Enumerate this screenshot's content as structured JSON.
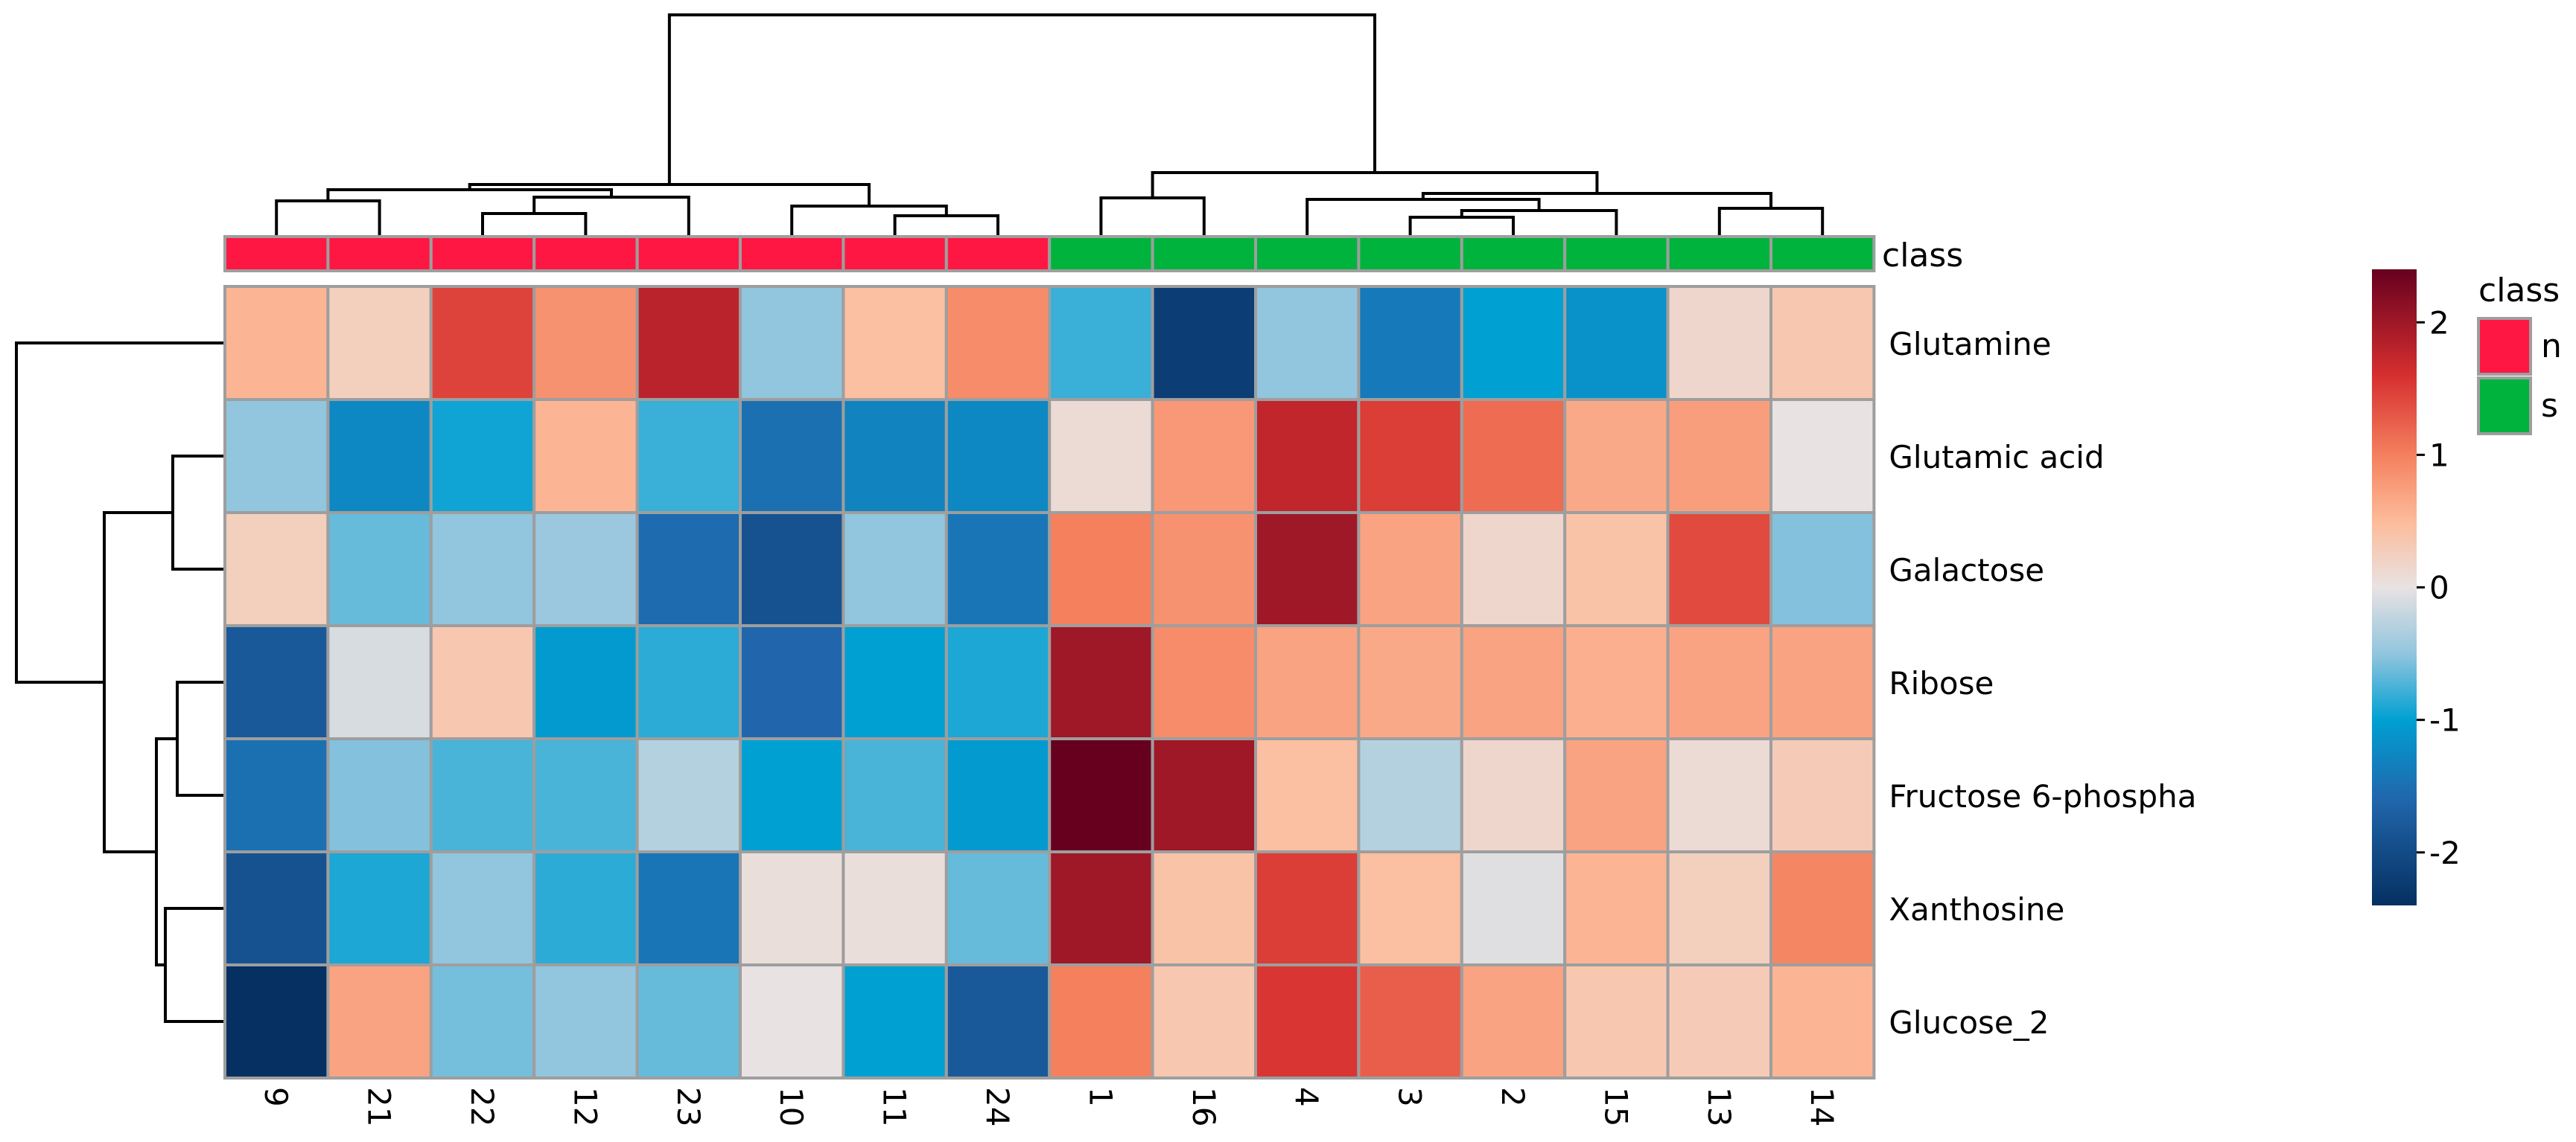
{
  "chart_data": {
    "type": "heatmap",
    "rows": [
      "Glutamine",
      "Glutamic acid",
      "Galactose",
      "Ribose",
      "Fructose 6-phospha",
      "Xanthosine",
      "Glucose_2"
    ],
    "columns": [
      "9",
      "21",
      "22",
      "12",
      "23",
      "10",
      "11",
      "24",
      "1",
      "16",
      "4",
      "3",
      "2",
      "15",
      "13",
      "14"
    ],
    "column_classes": [
      "n",
      "n",
      "n",
      "n",
      "n",
      "n",
      "n",
      "n",
      "s",
      "s",
      "s",
      "s",
      "s",
      "s",
      "s",
      "s"
    ],
    "values": [
      [
        0.55,
        0.25,
        1.45,
        0.85,
        1.8,
        -0.5,
        0.45,
        0.9,
        -0.8,
        -2.2,
        -0.5,
        -1.4,
        -1.0,
        -1.15,
        0.15,
        0.35
      ],
      [
        -0.5,
        -1.25,
        -0.95,
        0.55,
        -0.8,
        -1.5,
        -1.3,
        -1.25,
        0.1,
        0.8,
        1.75,
        1.5,
        1.15,
        0.65,
        0.75,
        0.0
      ],
      [
        0.25,
        -0.65,
        -0.5,
        -0.45,
        -1.55,
        -1.9,
        -0.5,
        -1.45,
        1.0,
        0.85,
        2.0,
        0.7,
        0.15,
        0.4,
        1.4,
        -0.55
      ],
      [
        -1.8,
        -0.1,
        0.35,
        -1.05,
        -0.85,
        -1.6,
        -1.0,
        -0.9,
        2.0,
        0.9,
        0.7,
        0.65,
        0.7,
        0.6,
        0.7,
        0.7
      ],
      [
        -1.5,
        -0.55,
        -0.75,
        -0.75,
        -0.3,
        -1.0,
        -0.75,
        -1.05,
        2.4,
        2.0,
        0.45,
        -0.3,
        0.15,
        0.7,
        0.1,
        0.3
      ],
      [
        -1.9,
        -0.9,
        -0.5,
        -0.85,
        -1.45,
        0.05,
        0.05,
        -0.65,
        2.0,
        0.4,
        1.5,
        0.45,
        -0.05,
        0.55,
        0.25,
        0.95
      ],
      [
        -2.4,
        0.7,
        -0.6,
        -0.5,
        -0.65,
        0.0,
        -1.0,
        -1.8,
        1.0,
        0.35,
        1.55,
        1.25,
        0.7,
        0.35,
        0.3,
        0.55
      ]
    ],
    "class_annotation_label": "class",
    "class_colors": {
      "n": "#ff1744",
      "s": "#00b33c"
    },
    "color_scale": {
      "min": -2.4,
      "max": 2.4,
      "stops": [
        {
          "value": -2.4,
          "color": "#053061"
        },
        {
          "value": -1.6,
          "color": "#2166ac"
        },
        {
          "value": -1.0,
          "color": "#00a0d2"
        },
        {
          "value": -0.5,
          "color": "#92c5de"
        },
        {
          "value": 0.0,
          "color": "#e8e2e2"
        },
        {
          "value": 0.5,
          "color": "#fdbb9a"
        },
        {
          "value": 1.0,
          "color": "#f4805e"
        },
        {
          "value": 1.6,
          "color": "#d62f2f"
        },
        {
          "value": 2.4,
          "color": "#67001f"
        }
      ],
      "ticks": [
        "2",
        "1",
        "0",
        "-1",
        "-2"
      ]
    },
    "legend": {
      "title": "class",
      "entries": [
        {
          "label": "n",
          "color": "#ff1744"
        },
        {
          "label": "s",
          "color": "#00b33c"
        }
      ]
    },
    "column_dendrogram": {
      "leaf_order": [
        "9",
        "21",
        "22",
        "12",
        "23",
        "10",
        "11",
        "24",
        "1",
        "16",
        "4",
        "3",
        "2",
        "15",
        "13",
        "14"
      ],
      "merges": [
        [
          "9",
          "21",
          0.05
        ],
        [
          "22",
          "12",
          0.12
        ],
        [
          "11",
          "24",
          0.1
        ],
        [
          "10",
          "11+24",
          0.15
        ],
        [
          "22+12",
          "23",
          0.2
        ],
        [
          "21+9",
          "22+12+23",
          0.15
        ],
        [
          "9+21+22+12+23",
          "10+11+24",
          0.28
        ],
        [
          "1",
          "16",
          0.22
        ],
        [
          "3",
          "2",
          0.06
        ],
        [
          "3+2",
          "15",
          0.08
        ],
        [
          "13",
          "14",
          0.12
        ],
        [
          "4",
          "3+2+15",
          0.15
        ],
        [
          "4+3+2+15",
          "13+14",
          0.18
        ],
        [
          "1+16",
          "4+3+2+15+13+14",
          0.32
        ],
        [
          "n-cluster",
          "s-cluster",
          1.0
        ]
      ]
    },
    "row_dendrogram": {
      "leaf_order": [
        "Glutamine",
        "Glutamic acid",
        "Galactose",
        "Ribose",
        "Fructose 6-phospha",
        "Xanthosine",
        "Glucose_2"
      ],
      "merges": [
        [
          "Glutamic acid",
          "Galactose",
          0.35
        ],
        [
          "Ribose",
          "Fructose 6-phospha",
          0.25
        ],
        [
          "Xanthosine",
          "Glucose_2",
          0.35
        ],
        [
          "Ribose+Fructose",
          "Xanthosine+Glucose_2",
          0.4
        ],
        [
          "Glutamic+Galactose",
          "Ribose+Fructose+Xanthosine+Glucose",
          0.62
        ],
        [
          "Glutamine",
          "rest",
          1.0
        ]
      ]
    }
  }
}
